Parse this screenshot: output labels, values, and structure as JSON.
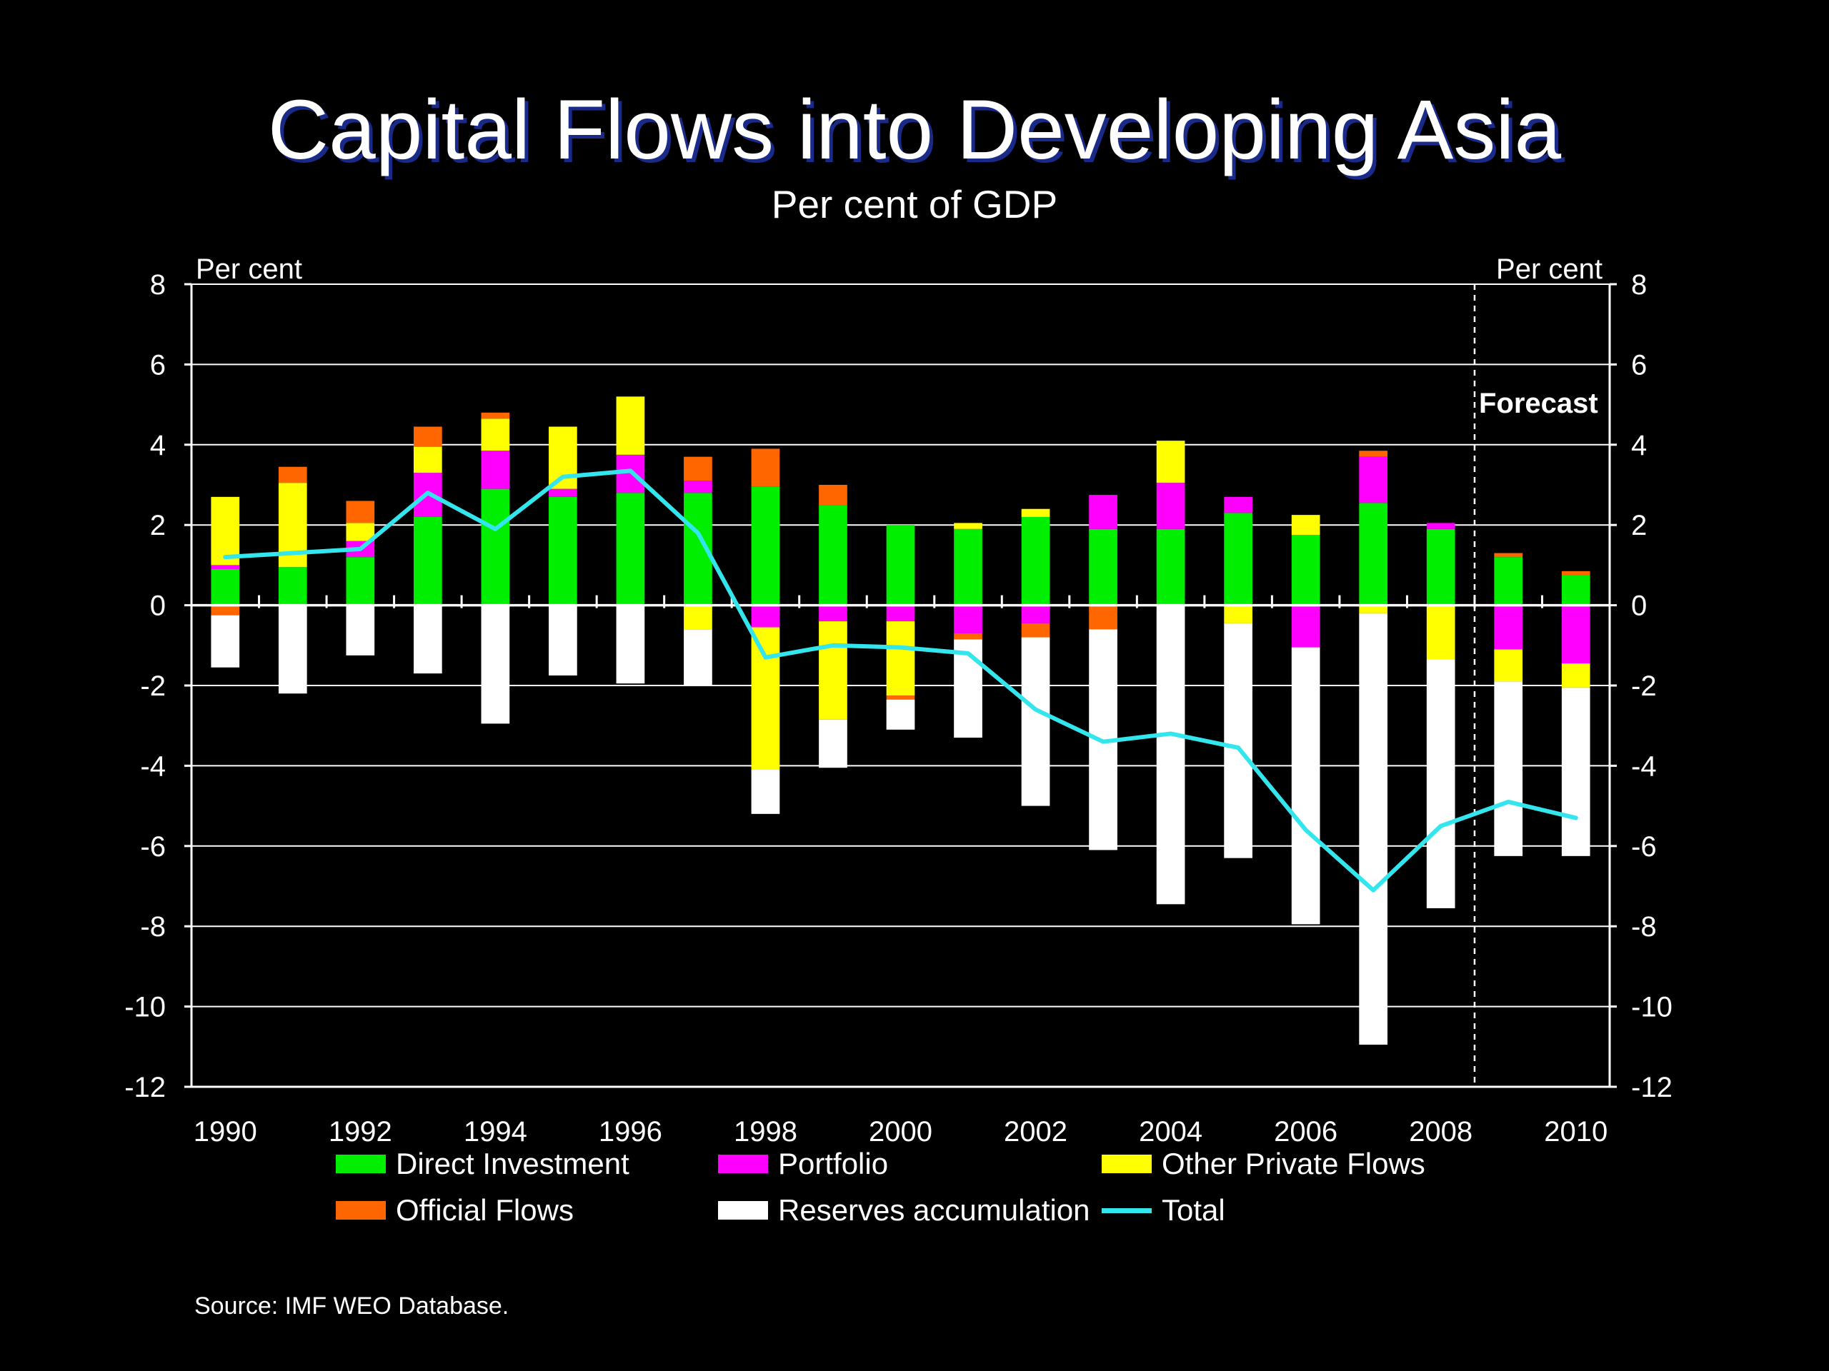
{
  "title": "Capital Flows into Developing Asia",
  "subtitle": "Per cent of GDP",
  "source": "Source: IMF WEO Database.",
  "chart_data": {
    "type": "bar",
    "stacked": true,
    "title": "Capital Flows into Developing Asia",
    "subtitle": "Per cent of GDP",
    "ylabel_left": "Per cent",
    "ylabel_right": "Per cent",
    "ylim": [
      -12,
      8
    ],
    "yticks": [
      8,
      6,
      4,
      2,
      0,
      -2,
      -4,
      -6,
      -8,
      -10,
      -12
    ],
    "categories": [
      "1990",
      "1991",
      "1992",
      "1993",
      "1994",
      "1995",
      "1996",
      "1997",
      "1998",
      "1999",
      "2000",
      "2001",
      "2002",
      "2003",
      "2004",
      "2005",
      "2006",
      "2007",
      "2008",
      "2009",
      "2010"
    ],
    "xtick_labels": [
      "1990",
      "1992",
      "1994",
      "1996",
      "1998",
      "2000",
      "2002",
      "2004",
      "2006",
      "2008",
      "2010"
    ],
    "grid": true,
    "annotation": "Forecast",
    "forecast_from": "2009",
    "series": [
      {
        "name": "Direct Investment",
        "color": "#00ee00",
        "values": [
          0.9,
          0.95,
          1.2,
          2.2,
          2.9,
          2.7,
          2.8,
          2.8,
          2.95,
          2.5,
          2.0,
          1.9,
          2.2,
          1.9,
          1.9,
          2.3,
          1.75,
          2.55,
          1.9,
          1.2,
          0.75
        ]
      },
      {
        "name": "Portfolio",
        "color": "#ff00ff",
        "values": [
          0.1,
          0.0,
          0.4,
          1.1,
          0.95,
          0.2,
          0.95,
          0.3,
          -0.55,
          -0.4,
          -0.4,
          -0.7,
          -0.45,
          0.85,
          1.15,
          0.4,
          -1.05,
          1.15,
          0.15,
          -1.1,
          -1.45
        ]
      },
      {
        "name": "Other Private Flows",
        "color": "#ffff00",
        "values": [
          1.7,
          2.1,
          0.45,
          0.65,
          0.8,
          1.55,
          1.45,
          -0.6,
          -3.55,
          -2.45,
          -1.85,
          0.15,
          0.2,
          0.0,
          1.05,
          -0.45,
          0.5,
          -0.2,
          -1.35,
          -0.8,
          -0.6
        ]
      },
      {
        "name": "Official Flows",
        "color": "#ff6600",
        "values": [
          -0.25,
          0.4,
          0.55,
          0.5,
          0.15,
          0.0,
          0.0,
          0.6,
          0.95,
          0.5,
          -0.1,
          -0.15,
          -0.35,
          -0.6,
          0.0,
          0.0,
          0.0,
          0.15,
          0.0,
          0.1,
          0.1
        ]
      },
      {
        "name": "Reserves accumulation",
        "color": "#ffffff",
        "values": [
          -1.3,
          -2.2,
          -1.25,
          -1.7,
          -2.95,
          -1.75,
          -1.95,
          -1.4,
          -1.1,
          -1.2,
          -0.75,
          -2.45,
          -4.2,
          -5.5,
          -7.45,
          -5.85,
          -6.9,
          -10.75,
          -6.2,
          -4.35,
          -4.2
        ]
      }
    ],
    "line_series": {
      "name": "Total",
      "color": "#33e6ee",
      "values": [
        1.2,
        1.3,
        1.4,
        2.8,
        1.9,
        3.2,
        3.35,
        1.8,
        -1.3,
        -1.0,
        -1.05,
        -1.2,
        -2.6,
        -3.4,
        -3.2,
        -3.55,
        -5.6,
        -7.1,
        -5.5,
        -4.9,
        -5.3
      ]
    }
  }
}
